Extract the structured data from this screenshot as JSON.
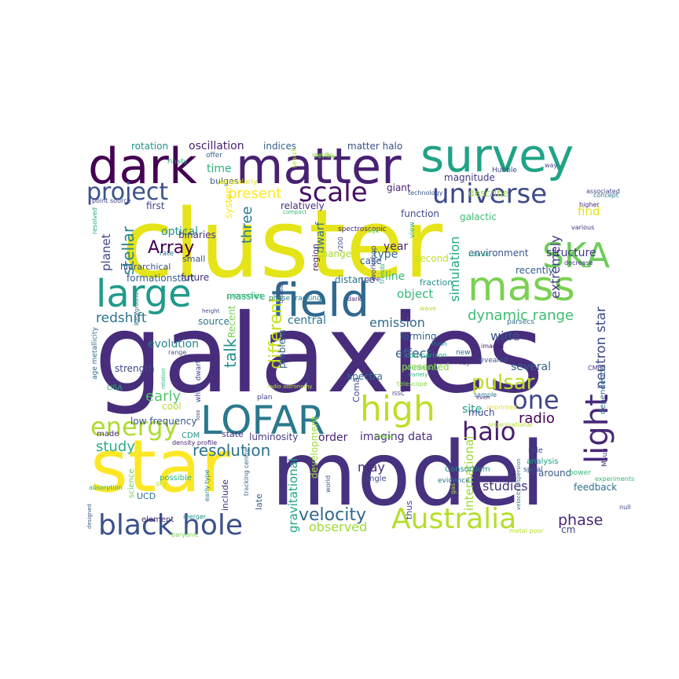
{
  "words": [
    {
      "text": "galaxies",
      "color": "#472d7b"
    },
    {
      "text": "cluster",
      "color": "#e5e419"
    },
    {
      "text": "model",
      "color": "#46327e"
    },
    {
      "text": "star",
      "color": "#fde725"
    },
    {
      "text": "dark",
      "color": "#440154"
    },
    {
      "text": "matter",
      "color": "#482173"
    },
    {
      "text": "survey",
      "color": "#20a386"
    },
    {
      "text": "field",
      "color": "#31688e"
    },
    {
      "text": "large",
      "color": "#1f9a8a"
    },
    {
      "text": "mass",
      "color": "#7ad151"
    },
    {
      "text": "LOFAR",
      "color": "#2a788e"
    },
    {
      "text": "high",
      "color": "#bddf26"
    },
    {
      "text": "black hole",
      "color": "#3b528b"
    },
    {
      "text": "Australia",
      "color": "#b5de2b"
    },
    {
      "text": "SKA",
      "color": "#6ccd5a"
    },
    {
      "text": "universe",
      "color": "#3e4989"
    },
    {
      "text": "scale",
      "color": "#471164"
    },
    {
      "text": "project",
      "color": "#3b528b"
    },
    {
      "text": "energy",
      "color": "#addc30"
    },
    {
      "text": "light",
      "color": "#482878"
    },
    {
      "text": "halo",
      "color": "#481d6f"
    },
    {
      "text": "one",
      "color": "#404688"
    },
    {
      "text": "dynamic range",
      "color": "#3fbc73"
    },
    {
      "text": "pulsar",
      "color": "#bddf26"
    },
    {
      "text": "velocity",
      "color": "#31688e"
    },
    {
      "text": "resolution",
      "color": "#2c728e"
    },
    {
      "text": "Array",
      "color": "#440154"
    },
    {
      "text": "stellar",
      "color": "#26828e"
    },
    {
      "text": "different",
      "color": "#c8e020"
    },
    {
      "text": "redshift",
      "color": "#2c728e"
    },
    {
      "text": "phase",
      "color": "#482878"
    },
    {
      "text": "talk",
      "color": "#21918c"
    },
    {
      "text": "neutron star",
      "color": "#3e4a89"
    },
    {
      "text": "study",
      "color": "#28ae80"
    },
    {
      "text": "observed",
      "color": "#9fda3a"
    },
    {
      "text": "early",
      "color": "#52c569"
    },
    {
      "text": "effect",
      "color": "#355f8d"
    },
    {
      "text": "emission",
      "color": "#31688e"
    },
    {
      "text": "three",
      "color": "#2a788e"
    },
    {
      "text": "object",
      "color": "#35b779"
    },
    {
      "text": "present",
      "color": "#fde725"
    },
    {
      "text": "radio",
      "color": "#440154"
    },
    {
      "text": "simulation",
      "color": "#22a884"
    },
    {
      "text": "extremely",
      "color": "#443983"
    },
    {
      "text": "structure",
      "color": "#453781"
    },
    {
      "text": "several",
      "color": "#355f8d"
    },
    {
      "text": "studies",
      "color": "#46327e"
    },
    {
      "text": "gravitational",
      "color": "#20a386"
    },
    {
      "text": "international",
      "color": "#a0da39"
    },
    {
      "text": "optical",
      "color": "#21918c"
    },
    {
      "text": "planet",
      "color": "#3e4989"
    },
    {
      "text": "site",
      "color": "#1f9e89"
    },
    {
      "text": "wide",
      "color": "#3b528b"
    },
    {
      "text": "may",
      "color": "#472d7b"
    },
    {
      "text": "time",
      "color": "#2db27d"
    },
    {
      "text": "year",
      "color": "#482475"
    },
    {
      "text": "type",
      "color": "#31688e"
    },
    {
      "text": "line",
      "color": "#35b779"
    },
    {
      "text": "dwarf",
      "color": "#2e6f8e"
    },
    {
      "text": "central",
      "color": "#2c728e"
    },
    {
      "text": "imaging data",
      "color": "#472d7b"
    },
    {
      "text": "order",
      "color": "#482475"
    },
    {
      "text": "find",
      "color": "#e5e419"
    },
    {
      "text": "oscillation",
      "color": "#481f70"
    },
    {
      "text": "indices",
      "color": "#34618d"
    },
    {
      "text": "rotation",
      "color": "#21918c"
    },
    {
      "text": "matter halo",
      "color": "#3b528b"
    },
    {
      "text": "magnitude",
      "color": "#453781"
    },
    {
      "text": "giant",
      "color": "#482071"
    },
    {
      "text": "describe",
      "color": "#9fda3a"
    },
    {
      "text": "function",
      "color": "#3e4989"
    },
    {
      "text": "galactic",
      "color": "#3fbc73"
    },
    {
      "text": "system",
      "color": "#fde725"
    },
    {
      "text": "relatively",
      "color": "#46327e"
    },
    {
      "text": "first",
      "color": "#404688"
    },
    {
      "text": "bulges",
      "color": "#355f8d"
    },
    {
      "text": "binaries",
      "color": "#453781"
    },
    {
      "text": "region",
      "color": "#481b6d"
    },
    {
      "text": "change",
      "color": "#a5db36"
    },
    {
      "text": "case",
      "color": "#365c8d"
    },
    {
      "text": "second",
      "color": "#c2df23"
    },
    {
      "text": "environment",
      "color": "#3b528b"
    },
    {
      "text": "recently",
      "color": "#355f8d"
    },
    {
      "text": "distance",
      "color": "#2c728e"
    },
    {
      "text": "fraction",
      "color": "#21918c"
    },
    {
      "text": "formationstart",
      "color": "#355f8d"
    },
    {
      "text": "future",
      "color": "#46337e"
    },
    {
      "text": "massive",
      "color": "#22a884"
    },
    {
      "text": "evolution",
      "color": "#26828e"
    },
    {
      "text": "Recent",
      "color": "#7ad151"
    },
    {
      "text": "source",
      "color": "#2a788e"
    },
    {
      "text": "strength",
      "color": "#404688"
    },
    {
      "text": "cool",
      "color": "#b5de2b"
    },
    {
      "text": "low frequency",
      "color": "#39568c"
    },
    {
      "text": "luminosity",
      "color": "#433e85"
    },
    {
      "text": "Coma",
      "color": "#3f4788"
    },
    {
      "text": "spectra",
      "color": "#2d708e"
    },
    {
      "text": "problem",
      "color": "#355f8d"
    },
    {
      "text": "forming",
      "color": "#365c8d"
    },
    {
      "text": "presented",
      "color": "#86d549"
    },
    {
      "text": "much",
      "color": "#3e4989"
    },
    {
      "text": "around",
      "color": "#39568c"
    },
    {
      "text": "feedback",
      "color": "#2e6f8e"
    },
    {
      "text": "cm",
      "color": "#404688"
    },
    {
      "text": "UCD",
      "color": "#2c728e"
    },
    {
      "text": "small",
      "color": "#3b528b"
    },
    {
      "text": "hierarchical",
      "color": "#3b528b"
    },
    {
      "text": "CDM",
      "color": "#21918c"
    },
    {
      "text": "state",
      "color": "#443983"
    },
    {
      "text": "made",
      "color": "#472d7b"
    },
    {
      "text": "possible",
      "color": "#2db27d"
    },
    {
      "text": "science",
      "color": "#6ece58"
    },
    {
      "text": "include",
      "color": "#46327e"
    },
    {
      "text": "late",
      "color": "#355f8d"
    },
    {
      "text": "development",
      "color": "#9fda3a"
    },
    {
      "text": "thus",
      "color": "#414487"
    },
    {
      "text": "single",
      "color": "#404688"
    },
    {
      "text": "Consortium",
      "color": "#21918c"
    },
    {
      "text": "element",
      "color": "#482878"
    },
    {
      "text": "dependence",
      "color": "#31688e"
    },
    {
      "text": "Msun",
      "color": "#453781"
    },
    {
      "text": "role",
      "color": "#3e4989"
    },
    {
      "text": "analysis",
      "color": "#1f9e89"
    },
    {
      "text": "spiral",
      "color": "#3b528b"
    },
    {
      "text": "power",
      "color": "#35b779"
    },
    {
      "text": "rate",
      "color": "#2c728e"
    },
    {
      "text": "properties",
      "color": "#3fbc73"
    },
    {
      "text": "white dwarf",
      "color": "#404688"
    },
    {
      "text": "particularly",
      "color": "#e5e419"
    },
    {
      "text": "Finally",
      "color": "#22a884"
    },
    {
      "text": "offer",
      "color": "#355f8d"
    },
    {
      "text": "point source",
      "color": "#404688"
    },
    {
      "text": "concept",
      "color": "#2a788e"
    },
    {
      "text": "higher",
      "color": "#482475"
    },
    {
      "text": "decrease",
      "color": "#453781"
    },
    {
      "text": "cosmic",
      "color": "#2db27d"
    },
    {
      "text": "various",
      "color": "#46327e"
    },
    {
      "text": "Hubble",
      "color": "#3e4989"
    },
    {
      "text": "way",
      "color": "#404688"
    },
    {
      "text": "associated",
      "color": "#414487"
    },
    {
      "text": "parsecs",
      "color": "#2c728e"
    },
    {
      "text": "CMB",
      "color": "#453781"
    },
    {
      "text": "images",
      "color": "#482475"
    },
    {
      "text": "new",
      "color": "#31688e"
    },
    {
      "text": "ray",
      "color": "#46327e"
    },
    {
      "text": "revealed",
      "color": "#3b528b"
    },
    {
      "text": "main",
      "color": "#2c728e"
    },
    {
      "text": "wave",
      "color": "#b5de2b"
    },
    {
      "text": "phase tracking",
      "color": "#26828e"
    },
    {
      "text": "spectroscopic",
      "color": "#482475"
    },
    {
      "text": "r200",
      "color": "#3e4989"
    },
    {
      "text": "view",
      "color": "#2db27d"
    },
    {
      "text": "curve",
      "color": "#482878"
    },
    {
      "text": "workshop",
      "color": "#414487"
    },
    {
      "text": "technology",
      "color": "#39568c"
    },
    {
      "text": "quasar",
      "color": "#404688"
    },
    {
      "text": "dark",
      "color": "#482878"
    },
    {
      "text": "comparison",
      "color": "#22a884"
    },
    {
      "text": "abundance",
      "color": "#6ece58"
    },
    {
      "text": "variety",
      "color": "#2db27d"
    },
    {
      "text": "telescope",
      "color": "#86d549"
    },
    {
      "text": "ISSC",
      "color": "#453781"
    },
    {
      "text": "even",
      "color": "#482071"
    },
    {
      "text": "shape",
      "color": "#7ad151"
    },
    {
      "text": "organisational",
      "color": "#b5de2b"
    },
    {
      "text": "sample",
      "color": "#2c728e"
    },
    {
      "text": "experiments",
      "color": "#35b779"
    },
    {
      "text": "null",
      "color": "#404688"
    },
    {
      "text": "evidence",
      "color": "#2c728e"
    },
    {
      "text": "metal poor",
      "color": "#b5de2b"
    },
    {
      "text": "velocity dispersion",
      "color": "#2c728e"
    },
    {
      "text": "baryonic",
      "color": "#7ad151"
    },
    {
      "text": "merger",
      "color": "#21918c"
    },
    {
      "text": "designed",
      "color": "#39568c"
    },
    {
      "text": "absorption",
      "color": "#2db27d"
    },
    {
      "text": "density profile",
      "color": "#482475"
    },
    {
      "text": "early type",
      "color": "#26828e"
    },
    {
      "text": "tracking centre",
      "color": "#31688e"
    },
    {
      "text": "world",
      "color": "#3b528b"
    },
    {
      "text": "many",
      "color": "#404688"
    },
    {
      "text": "relation",
      "color": "#35b779"
    },
    {
      "text": "loss",
      "color": "#3e4989"
    },
    {
      "text": "plan",
      "color": "#414487"
    },
    {
      "text": "range",
      "color": "#3b528b"
    },
    {
      "text": "LISA",
      "color": "#2db27d"
    },
    {
      "text": "radio astronomy",
      "color": "#b5de2b"
    },
    {
      "text": "age metallicity",
      "color": "#2c728e"
    },
    {
      "text": "resolved",
      "color": "#22a884"
    },
    {
      "text": "Background",
      "color": "#2a788e"
    },
    {
      "text": "height",
      "color": "#404688"
    },
    {
      "text": "review",
      "color": "#86d549"
    },
    {
      "text": "search",
      "color": "#b5de2b"
    },
    {
      "text": "specific",
      "color": "#86d549"
    },
    {
      "text": "age",
      "color": "#86d549"
    },
    {
      "text": "compact",
      "color": "#35b779"
    },
    {
      "text": "trends",
      "color": "#2db27d"
    },
    {
      "text": "gas",
      "color": "#b5de2b"
    },
    {
      "text": "imprinted",
      "color": "#e5e419"
    },
    {
      "text": "sky",
      "color": "#c2df23"
    }
  ]
}
